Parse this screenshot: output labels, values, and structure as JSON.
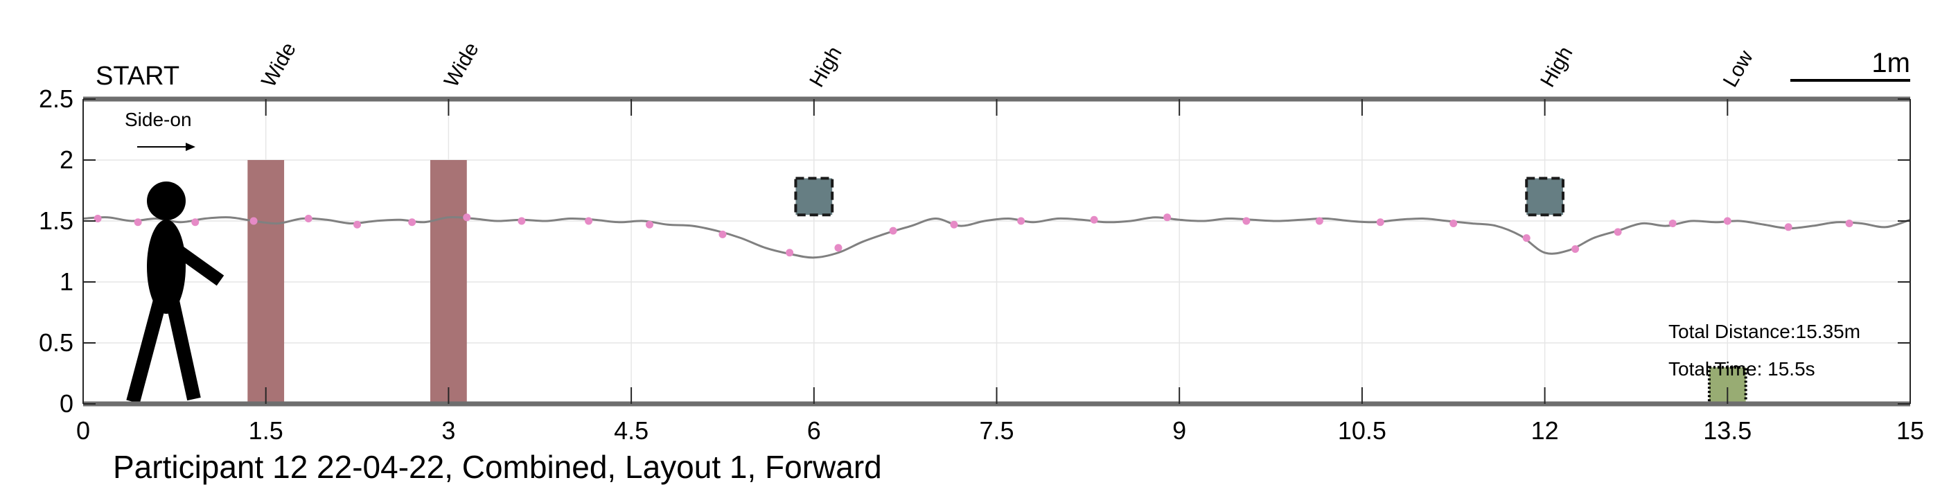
{
  "chart_data": {
    "type": "line",
    "title": "Participant 12 22-04-22, Combined, Layout 1, Forward",
    "start_label": "START",
    "direction_label": "Side-on",
    "scale_label": "1m",
    "x_ticks": [
      "0",
      "1.5",
      "3",
      "4.5",
      "6",
      "7.5",
      "9",
      "10.5",
      "12",
      "13.5",
      "15"
    ],
    "y_ticks": [
      "0",
      "0.5",
      "1",
      "1.5",
      "2",
      "2.5"
    ],
    "xlim": [
      0,
      15
    ],
    "ylim": [
      0,
      2.5
    ],
    "grid": true,
    "colors": {
      "path": "#808080",
      "markers": "#e68ac6",
      "wide_obstacle": "#a87375",
      "high_obstacle": "#667e83",
      "low_obstacle": "#98ac73",
      "axis": "#6e6e6e"
    },
    "obstacles": [
      {
        "label": "Wide",
        "kind": "wide",
        "x": [
          1.35,
          1.65
        ],
        "y": [
          0,
          2.0
        ]
      },
      {
        "label": "Wide",
        "kind": "wide",
        "x": [
          2.85,
          3.15
        ],
        "y": [
          0,
          2.0
        ]
      },
      {
        "label": "High",
        "kind": "high",
        "x": [
          5.85,
          6.15
        ],
        "y": [
          1.55,
          1.85
        ]
      },
      {
        "label": "High",
        "kind": "high",
        "x": [
          11.85,
          12.15
        ],
        "y": [
          1.55,
          1.85
        ]
      },
      {
        "label": "Low",
        "kind": "low",
        "x": [
          13.35,
          13.65
        ],
        "y": [
          0,
          0.3
        ]
      }
    ],
    "series": [
      {
        "x": [
          0,
          0.2,
          0.4,
          0.6,
          0.8,
          1.0,
          1.2,
          1.4,
          1.6,
          1.8,
          2.0,
          2.2,
          2.4,
          2.6,
          2.8,
          3.0,
          3.2,
          3.4,
          3.6,
          3.8,
          4.0,
          4.2,
          4.4,
          4.6,
          4.8,
          5.0,
          5.2,
          5.4,
          5.6,
          5.8,
          6.0,
          6.2,
          6.4,
          6.6,
          6.8,
          7.0,
          7.2,
          7.4,
          7.6,
          7.8,
          8.0,
          8.2,
          8.4,
          8.6,
          8.8,
          9.0,
          9.2,
          9.4,
          9.6,
          9.8,
          10.0,
          10.2,
          10.4,
          10.6,
          10.8,
          11.0,
          11.2,
          11.4,
          11.6,
          11.8,
          12.0,
          12.2,
          12.4,
          12.6,
          12.8,
          13.0,
          13.2,
          13.4,
          13.6,
          13.8,
          14.0,
          14.2,
          14.4,
          14.6,
          14.8,
          15.0
        ],
        "values": [
          1.52,
          1.53,
          1.5,
          1.52,
          1.49,
          1.52,
          1.53,
          1.5,
          1.48,
          1.52,
          1.51,
          1.48,
          1.5,
          1.51,
          1.49,
          1.53,
          1.52,
          1.5,
          1.51,
          1.5,
          1.52,
          1.51,
          1.49,
          1.5,
          1.47,
          1.46,
          1.42,
          1.36,
          1.28,
          1.23,
          1.2,
          1.24,
          1.33,
          1.4,
          1.46,
          1.52,
          1.46,
          1.5,
          1.52,
          1.49,
          1.52,
          1.51,
          1.49,
          1.5,
          1.53,
          1.51,
          1.5,
          1.52,
          1.51,
          1.5,
          1.51,
          1.52,
          1.5,
          1.49,
          1.51,
          1.52,
          1.5,
          1.48,
          1.46,
          1.38,
          1.24,
          1.26,
          1.36,
          1.42,
          1.48,
          1.46,
          1.5,
          1.49,
          1.5,
          1.47,
          1.44,
          1.46,
          1.49,
          1.48,
          1.45,
          1.51
        ]
      }
    ],
    "markers": {
      "x": [
        0.12,
        0.45,
        0.92,
        1.4,
        1.85,
        2.25,
        2.7,
        3.15,
        3.6,
        4.15,
        4.65,
        5.25,
        5.8,
        6.2,
        6.65,
        7.15,
        7.7,
        8.3,
        8.9,
        9.55,
        10.15,
        10.65,
        11.25,
        11.85,
        12.25,
        12.6,
        13.05,
        13.5,
        14.0,
        14.5
      ],
      "values": [
        1.52,
        1.49,
        1.49,
        1.5,
        1.52,
        1.47,
        1.49,
        1.53,
        1.5,
        1.5,
        1.47,
        1.39,
        1.24,
        1.28,
        1.42,
        1.47,
        1.5,
        1.51,
        1.53,
        1.5,
        1.5,
        1.49,
        1.48,
        1.36,
        1.27,
        1.41,
        1.48,
        1.5,
        1.45,
        1.48
      ]
    },
    "annotations": {
      "total_distance": "Total Distance:15.35m",
      "total_time": "Total Time: 15.5s"
    }
  }
}
